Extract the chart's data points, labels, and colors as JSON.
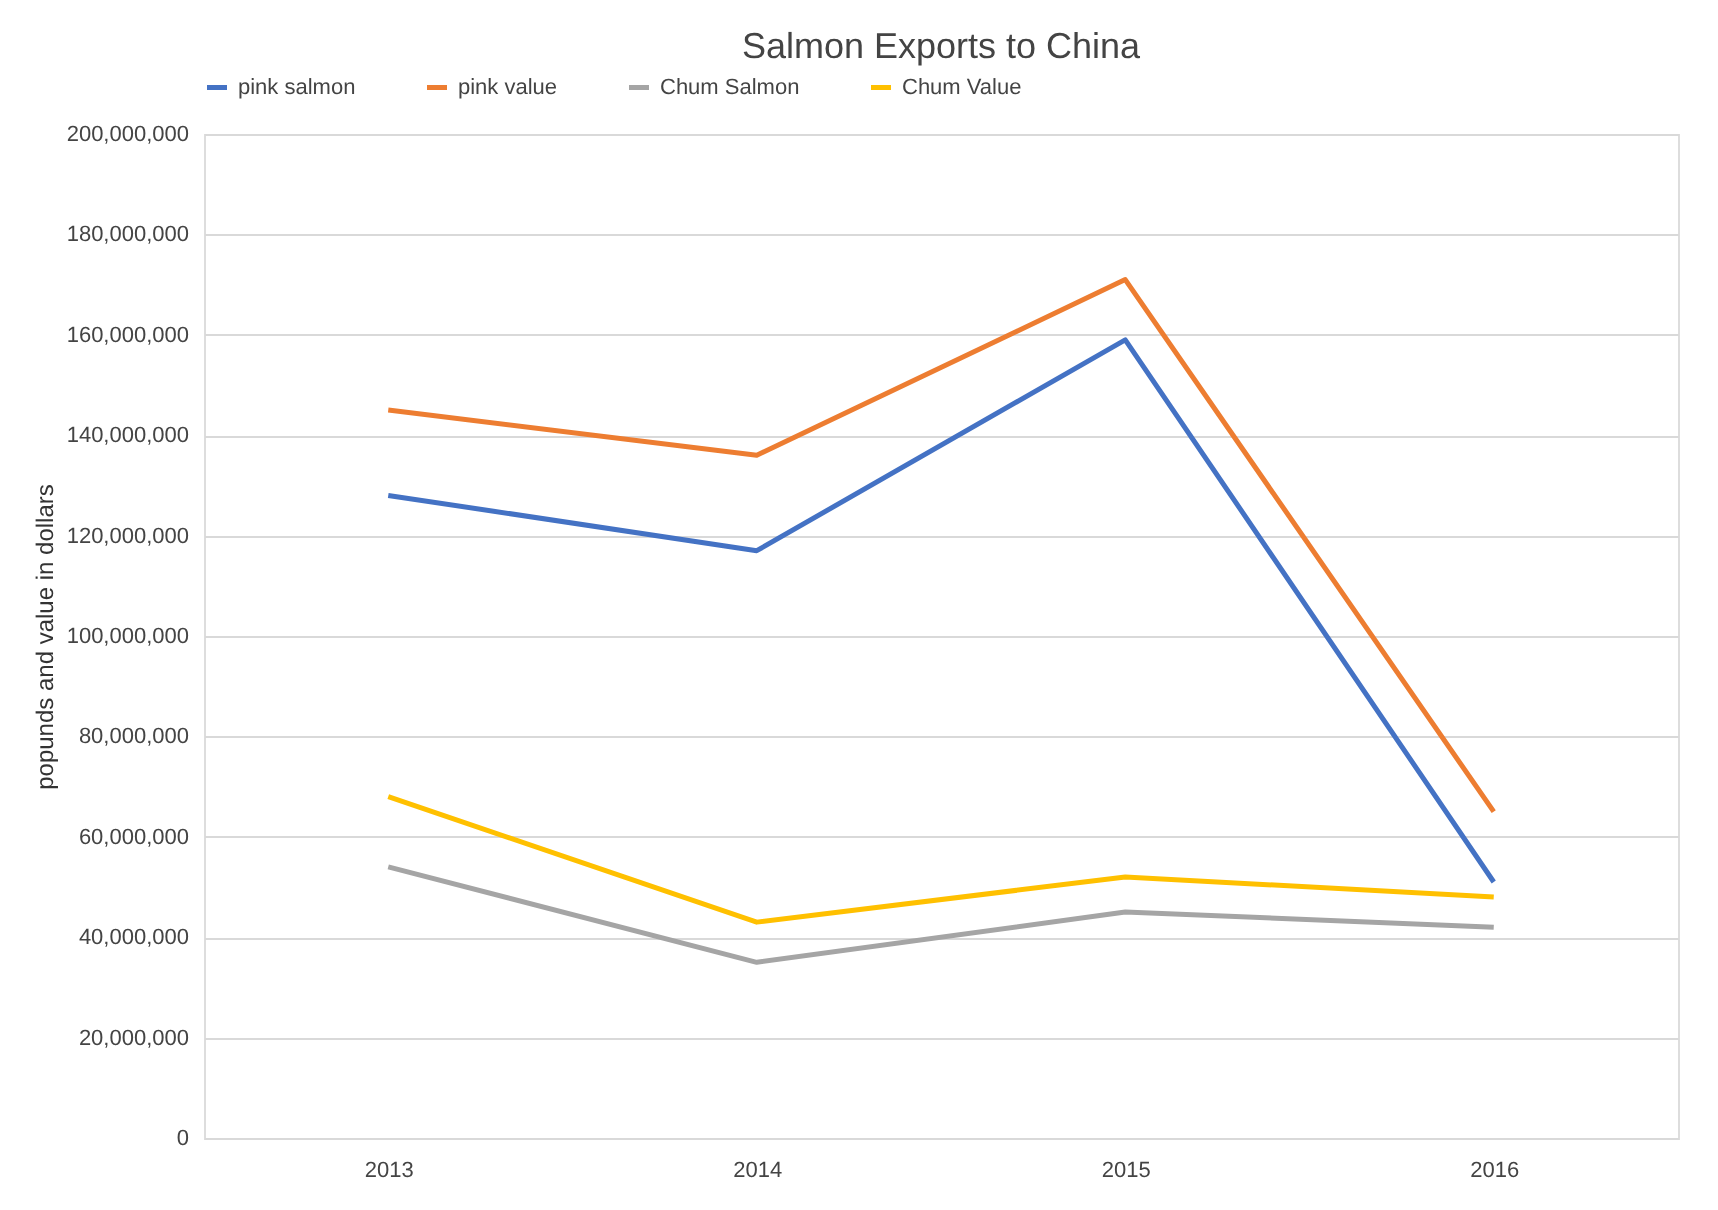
{
  "chart_data": {
    "type": "line",
    "title": "Salmon Exports to China",
    "ylabel": "popunds  and value in dollars",
    "categories": [
      "2013",
      "2014",
      "2015",
      "2016"
    ],
    "series": [
      {
        "name": "pink salmon",
        "color": "#4472c4",
        "values": [
          128000000,
          117000000,
          159000000,
          51000000
        ]
      },
      {
        "name": "pink value",
        "color": "#ed7d31",
        "values": [
          145000000,
          136000000,
          171000000,
          65000000
        ]
      },
      {
        "name": "Chum Salmon",
        "color": "#a5a5a5",
        "values": [
          54000000,
          35000000,
          45000000,
          42000000
        ]
      },
      {
        "name": "Chum Value",
        "color": "#ffc000",
        "values": [
          68000000,
          43000000,
          52000000,
          48000000
        ]
      }
    ],
    "ylim": [
      0,
      200000000
    ],
    "yticks": [
      0,
      {
        "value": 20000000,
        "label": "20,000,000"
      },
      {
        "value": 40000000,
        "label": "40,000,000"
      },
      {
        "value": 60000000,
        "label": "60,000,000"
      },
      {
        "value": 80000000,
        "label": "80,000,000"
      },
      {
        "value": 100000000,
        "label": "100,000,000"
      },
      {
        "value": 120000000,
        "label": "120,000,000"
      },
      {
        "value": 140000000,
        "label": "140,000,000"
      },
      {
        "value": 160000000,
        "label": "160,000,000"
      },
      {
        "value": 180000000,
        "label": "180,000,000"
      },
      {
        "value": 200000000,
        "label": "200,000,000"
      }
    ],
    "grid": "y",
    "legend": "top",
    "marker": "none",
    "line_style": "solid"
  }
}
